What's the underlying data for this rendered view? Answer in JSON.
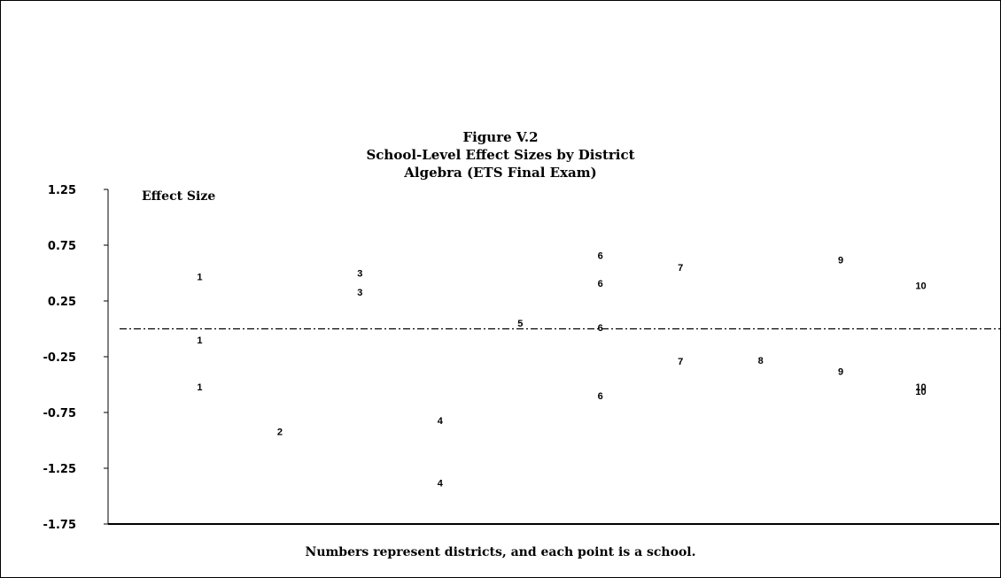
{
  "chart_data": {
    "type": "scatter",
    "title": [
      "Figure V.2",
      "School-Level Effect Sizes by District",
      "Algebra (ETS Final Exam)"
    ],
    "ylabel": "Effect Size",
    "xlabel": "",
    "note": "Numbers represent districts, and each point is a school.",
    "ylim": [
      -1.75,
      1.25
    ],
    "yticks": [
      "1.25",
      "0.75",
      "0.25",
      "-0.25",
      "-0.75",
      "-1.25",
      "-1.75"
    ],
    "reference_line": 0,
    "xlim": [
      0,
      11
    ],
    "grid": false,
    "points": [
      {
        "district": "1",
        "x": 1,
        "y": 0.47
      },
      {
        "district": "1",
        "x": 1,
        "y": -0.1
      },
      {
        "district": "1",
        "x": 1,
        "y": -0.52
      },
      {
        "district": "2",
        "x": 2,
        "y": -0.92
      },
      {
        "district": "3",
        "x": 3,
        "y": 0.5
      },
      {
        "district": "3",
        "x": 3,
        "y": 0.33
      },
      {
        "district": "4",
        "x": 4,
        "y": -0.82
      },
      {
        "district": "4",
        "x": 4,
        "y": -1.38
      },
      {
        "district": "5",
        "x": 5,
        "y": 0.05
      },
      {
        "district": "6",
        "x": 6,
        "y": 0.66
      },
      {
        "district": "6",
        "x": 6,
        "y": 0.41
      },
      {
        "district": "6",
        "x": 6,
        "y": 0.01
      },
      {
        "district": "6",
        "x": 6,
        "y": -0.6
      },
      {
        "district": "7",
        "x": 7,
        "y": 0.55
      },
      {
        "district": "7",
        "x": 7,
        "y": -0.29
      },
      {
        "district": "8",
        "x": 8,
        "y": -0.28
      },
      {
        "district": "9",
        "x": 9,
        "y": 0.62
      },
      {
        "district": "9",
        "x": 9,
        "y": -0.38
      },
      {
        "district": "10",
        "x": 10,
        "y": 0.39
      },
      {
        "district": "10",
        "x": 10,
        "y": -0.52
      },
      {
        "district": "10",
        "x": 10,
        "y": -0.56
      }
    ]
  }
}
